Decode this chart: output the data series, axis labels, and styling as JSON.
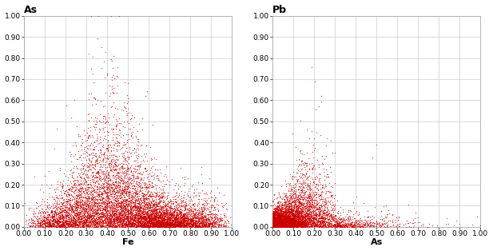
{
  "plot1": {
    "title": "As",
    "xlabel": "Fe",
    "xlim": [
      0.0,
      1.0
    ],
    "ylim": [
      0.0,
      1.0
    ],
    "xticks": [
      0.0,
      0.1,
      0.2,
      0.3,
      0.4,
      0.5,
      0.6,
      0.7,
      0.8,
      0.9,
      1.0
    ],
    "yticks": [
      0.0,
      0.1,
      0.2,
      0.3,
      0.4,
      0.5,
      0.6,
      0.7,
      0.8,
      0.9,
      1.0
    ],
    "dot_color": "#cc0000",
    "dot_size": 0.8,
    "n_points": 10000,
    "seed": 42
  },
  "plot2": {
    "title": "Pb",
    "xlabel": "As",
    "xlim": [
      0.0,
      1.0
    ],
    "ylim": [
      0.0,
      1.0
    ],
    "xticks": [
      0.0,
      0.1,
      0.2,
      0.3,
      0.4,
      0.5,
      0.6,
      0.7,
      0.8,
      0.9,
      1.0
    ],
    "yticks": [
      0.0,
      0.1,
      0.2,
      0.3,
      0.4,
      0.5,
      0.6,
      0.7,
      0.8,
      0.9,
      1.0
    ],
    "dot_color": "#cc0000",
    "dot_size": 0.8,
    "n_points": 7000,
    "seed": 77
  },
  "background_color": "#ffffff",
  "grid_color": "#cccccc",
  "grid_linewidth": 0.5,
  "title_fontsize": 9,
  "label_fontsize": 8,
  "tick_fontsize": 6.5
}
